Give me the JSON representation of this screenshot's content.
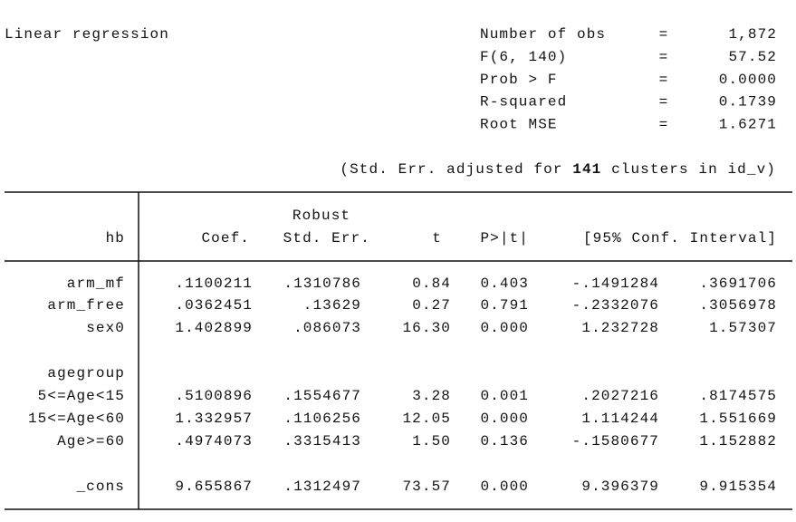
{
  "header": {
    "title": "Linear regression",
    "stats": [
      {
        "label": "Number of obs",
        "eq": "=",
        "value": "1,872"
      },
      {
        "label": "F(6, 140)",
        "eq": "=",
        "value": "57.52"
      },
      {
        "label": "Prob > F",
        "eq": "=",
        "value": "0.0000"
      },
      {
        "label": "R-squared",
        "eq": "=",
        "value": "0.1739"
      },
      {
        "label": "Root MSE",
        "eq": "=",
        "value": "1.6271"
      }
    ],
    "note": {
      "prefix": "(Std. Err. adjusted for",
      "clusters": "141",
      "suffix": "clusters in id_v)"
    }
  },
  "table": {
    "header_top": "Robust",
    "columns": [
      "hb",
      "Coef.",
      "Std. Err.",
      "t",
      "P>|t|",
      "[95% Conf. Interval]"
    ],
    "rows": [
      [
        "arm_mf",
        ".1100211",
        ".1310786",
        "0.84",
        "0.403",
        "-.1491284",
        ".3691706"
      ],
      [
        "arm_free",
        ".0362451",
        ".13629",
        "0.27",
        "0.791",
        "-.2332076",
        ".3056978"
      ],
      [
        "sex0",
        "1.402899",
        ".086073",
        "16.30",
        "0.000",
        "1.232728",
        "1.57307"
      ],
      [
        "agegroup"
      ],
      [
        "5<=Age<15",
        ".5100896",
        ".1554677",
        "3.28",
        "0.001",
        ".2027216",
        ".8174575"
      ],
      [
        "15<=Age<60",
        "1.332957",
        ".1106256",
        "12.05",
        "0.000",
        "1.114244",
        "1.551669"
      ],
      [
        "Age>=60",
        ".4974073",
        ".3315413",
        "1.50",
        "0.136",
        "-.1580677",
        "1.152882"
      ],
      [
        "_cons",
        "9.655867",
        ".1312497",
        "73.57",
        "0.000",
        "9.396379",
        "9.915354"
      ]
    ]
  }
}
